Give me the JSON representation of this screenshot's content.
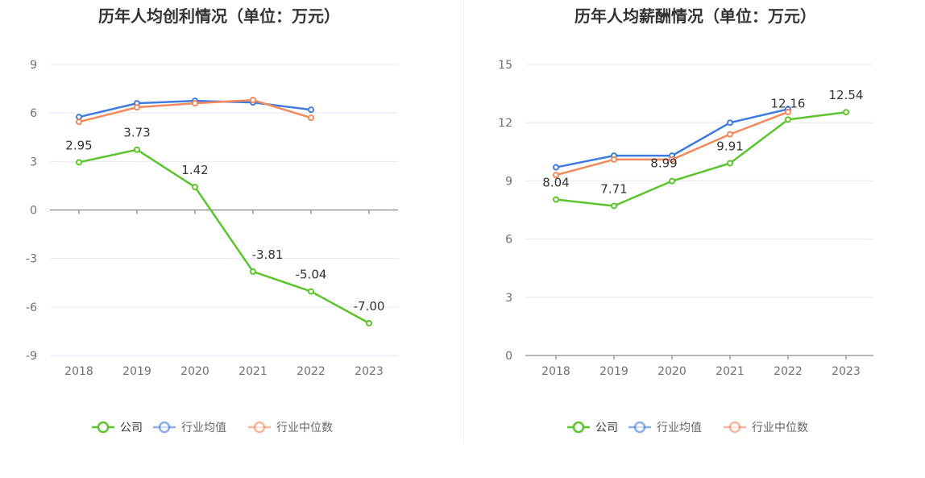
{
  "chart_data": [
    {
      "type": "line",
      "title": "历年人均创利情况（单位：万元）",
      "categories": [
        "2018",
        "2019",
        "2020",
        "2021",
        "2022",
        "2023"
      ],
      "ylim": [
        -9,
        9
      ],
      "yticks": [
        9,
        6,
        3,
        0,
        -3,
        -6,
        -9
      ],
      "grid": true,
      "legend_position": "bottom",
      "series": [
        {
          "name": "公司",
          "color": "#5cc42c",
          "values": [
            2.95,
            3.73,
            1.42,
            -3.81,
            -5.04,
            -7.0
          ],
          "labels": [
            "2.95",
            "3.73",
            "1.42",
            "-3.81",
            "-5.04",
            "-7.00"
          ]
        },
        {
          "name": "行业均值",
          "color": "#3f7be0",
          "values": [
            5.75,
            6.6,
            6.75,
            6.65,
            6.2,
            null
          ]
        },
        {
          "name": "行业中位数",
          "color": "#f48a5c",
          "values": [
            5.45,
            6.35,
            6.6,
            6.8,
            5.7,
            null
          ]
        }
      ]
    },
    {
      "type": "line",
      "title": "历年人均薪酬情况（单位：万元）",
      "categories": [
        "2018",
        "2019",
        "2020",
        "2021",
        "2022",
        "2023"
      ],
      "ylim": [
        0,
        15
      ],
      "yticks": [
        15,
        12,
        9,
        6,
        3,
        0
      ],
      "grid": true,
      "legend_position": "bottom",
      "series": [
        {
          "name": "公司",
          "color": "#5cc42c",
          "values": [
            8.04,
            7.71,
            8.99,
            9.91,
            12.16,
            12.54
          ],
          "labels": [
            "8.04",
            "7.71",
            "8.99",
            "9.91",
            "12.16",
            "12.54"
          ]
        },
        {
          "name": "行业均值",
          "color": "#3f7be0",
          "values": [
            9.7,
            10.3,
            10.3,
            12.0,
            12.7,
            null
          ]
        },
        {
          "name": "行业中位数",
          "color": "#f48a5c",
          "values": [
            9.3,
            10.1,
            10.1,
            11.4,
            12.55,
            null
          ]
        }
      ]
    }
  ]
}
